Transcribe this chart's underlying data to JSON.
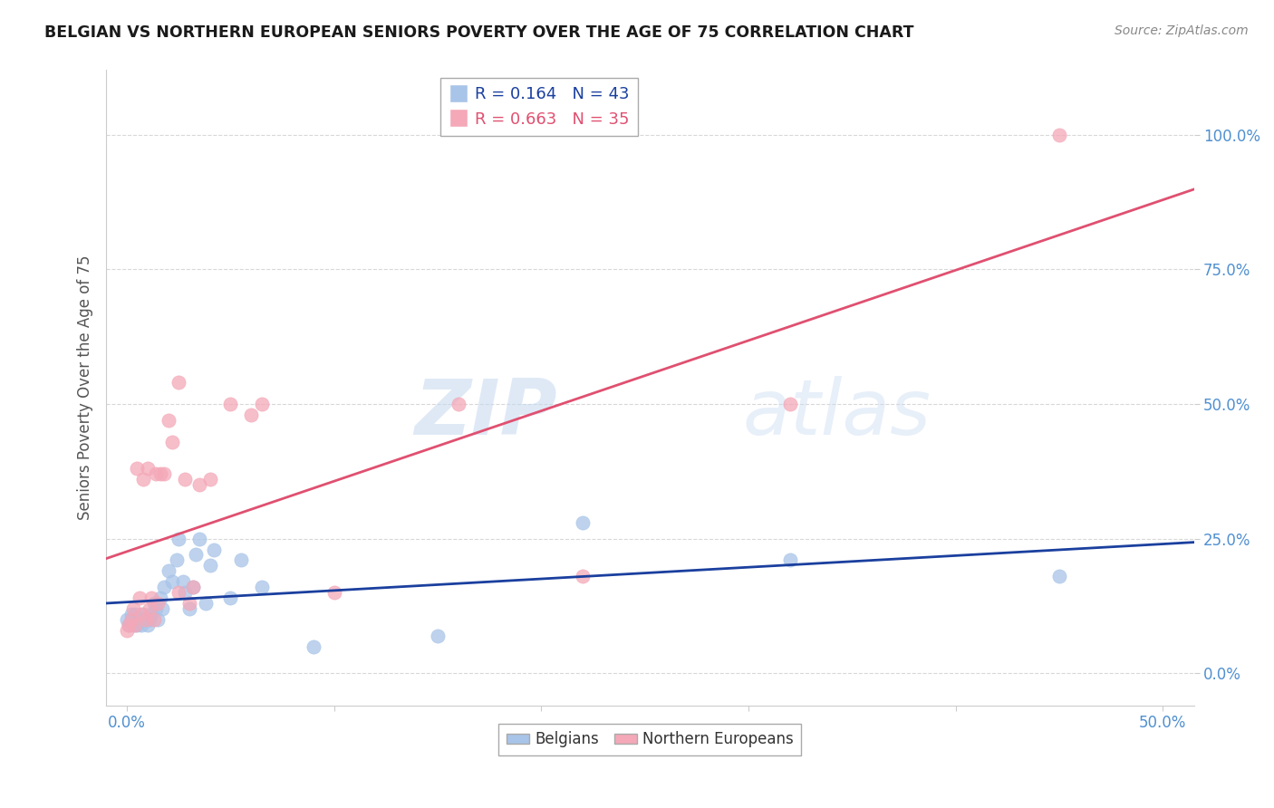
{
  "title": "BELGIAN VS NORTHERN EUROPEAN SENIORS POVERTY OVER THE AGE OF 75 CORRELATION CHART",
  "source": "Source: ZipAtlas.com",
  "ylabel": "Seniors Poverty Over the Age of 75",
  "xlim": [
    -0.01,
    0.515
  ],
  "ylim": [
    -0.06,
    1.12
  ],
  "belgians_color": "#a8c4e8",
  "northern_color": "#f4a8b8",
  "belgians_line_color": "#1a3f9e",
  "northern_line_color": "#e05070",
  "legend_belgians_R": "R = 0.164",
  "legend_belgians_N": "N = 43",
  "legend_northern_R": "R = 0.663",
  "legend_northern_N": "N = 35",
  "watermark_zip": "ZIP",
  "watermark_atlas": "atlas",
  "belgians_x": [
    0.0,
    0.001,
    0.002,
    0.002,
    0.003,
    0.004,
    0.005,
    0.005,
    0.006,
    0.007,
    0.007,
    0.008,
    0.009,
    0.01,
    0.011,
    0.012,
    0.013,
    0.014,
    0.015,
    0.016,
    0.017,
    0.018,
    0.02,
    0.022,
    0.024,
    0.025,
    0.027,
    0.028,
    0.03,
    0.032,
    0.033,
    0.035,
    0.038,
    0.04,
    0.042,
    0.05,
    0.055,
    0.065,
    0.09,
    0.15,
    0.22,
    0.32,
    0.45
  ],
  "belgians_y": [
    0.1,
    0.09,
    0.11,
    0.1,
    0.09,
    0.11,
    0.1,
    0.09,
    0.1,
    0.1,
    0.09,
    0.11,
    0.1,
    0.09,
    0.1,
    0.11,
    0.13,
    0.12,
    0.1,
    0.14,
    0.12,
    0.16,
    0.19,
    0.17,
    0.21,
    0.25,
    0.17,
    0.15,
    0.12,
    0.16,
    0.22,
    0.25,
    0.13,
    0.2,
    0.23,
    0.14,
    0.21,
    0.16,
    0.05,
    0.07,
    0.28,
    0.21,
    0.18
  ],
  "northern_x": [
    0.0,
    0.001,
    0.002,
    0.003,
    0.004,
    0.005,
    0.006,
    0.007,
    0.008,
    0.009,
    0.01,
    0.011,
    0.012,
    0.013,
    0.014,
    0.015,
    0.016,
    0.018,
    0.02,
    0.022,
    0.025,
    0.025,
    0.028,
    0.03,
    0.032,
    0.035,
    0.04,
    0.05,
    0.06,
    0.065,
    0.1,
    0.16,
    0.22,
    0.32,
    0.45
  ],
  "northern_y": [
    0.08,
    0.09,
    0.1,
    0.12,
    0.09,
    0.38,
    0.14,
    0.11,
    0.36,
    0.1,
    0.38,
    0.12,
    0.14,
    0.1,
    0.37,
    0.13,
    0.37,
    0.37,
    0.47,
    0.43,
    0.54,
    0.15,
    0.36,
    0.13,
    0.16,
    0.35,
    0.36,
    0.5,
    0.48,
    0.5,
    0.15,
    0.5,
    0.18,
    0.5,
    1.0
  ],
  "point_size": 120,
  "xtick_positions": [
    0.0,
    0.1,
    0.2,
    0.3,
    0.4,
    0.5
  ],
  "ytick_positions": [
    0.0,
    0.25,
    0.5,
    0.75,
    1.0
  ],
  "xtick_labels_show": [
    true,
    false,
    false,
    false,
    false,
    true
  ],
  "ytick_labels": [
    "0.0%",
    "25.0%",
    "50.0%",
    "75.0%",
    "100.0%"
  ],
  "grid_color": "#d8d8d8",
  "spine_color": "#cccccc",
  "tick_label_color_y": "#5090d0",
  "tick_label_color_x": "#5090d0"
}
